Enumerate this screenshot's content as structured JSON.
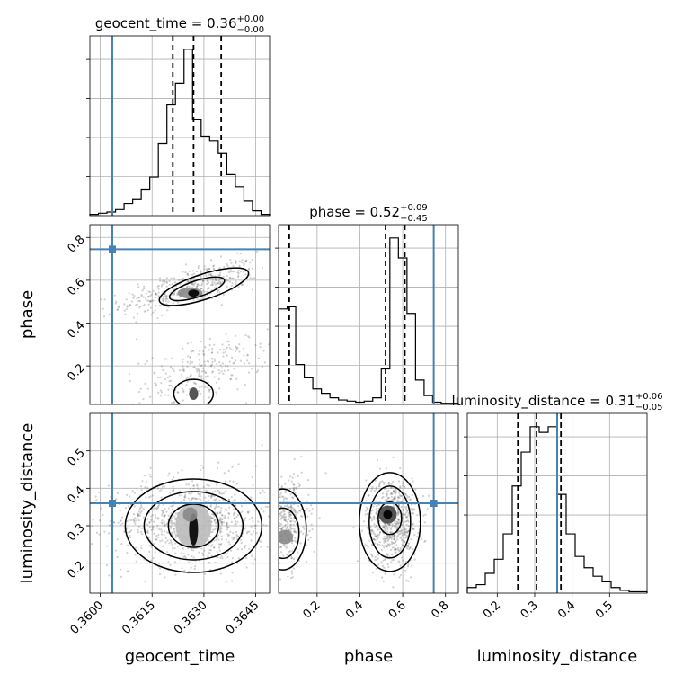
{
  "chart_data": {
    "type": "corner",
    "truth_color": "#4682b4",
    "grid": true,
    "parameters": [
      {
        "name": "geocent_time",
        "label": "geocent_time",
        "range": [
          0.3597,
          0.3649
        ],
        "ticks": [
          0.36,
          0.3615,
          0.363,
          0.3645
        ],
        "tick_labels": [
          "0.3600",
          "0.3615",
          "0.3630",
          "0.3645"
        ],
        "truth": 0.36035,
        "quantiles": [
          0.3621,
          0.3627,
          0.3635
        ],
        "title": {
          "main": "geocent_time = 0.36",
          "upper": "+0.00",
          "lower": "−0.00"
        },
        "hist": [
          0.5,
          1,
          1.5,
          2.5,
          5,
          7,
          11,
          16,
          30,
          46,
          55,
          69,
          40,
          33,
          31,
          26,
          17,
          12,
          6,
          2,
          0.5
        ]
      },
      {
        "name": "phase",
        "label": "phase",
        "range": [
          0.02,
          0.86
        ],
        "ticks": [
          0.2,
          0.4,
          0.6,
          0.8
        ],
        "tick_labels": [
          "0.2",
          "0.4",
          "0.6",
          "0.8"
        ],
        "truth": 0.745,
        "quantiles": [
          0.07,
          0.52,
          0.61
        ],
        "title": {
          "main": "phase = 0.52",
          "upper": "+0.09",
          "lower": "−0.45"
        },
        "hist": [
          43,
          44,
          18,
          12,
          7,
          5,
          3,
          2,
          1.5,
          1,
          1.5,
          3,
          16,
          75,
          66,
          41,
          11,
          4,
          1,
          0.5,
          0.5
        ]
      },
      {
        "name": "luminosity_distance",
        "label": "luminosity_distance",
        "range": [
          0.12,
          0.6
        ],
        "ticks": [
          0.2,
          0.3,
          0.4,
          0.5
        ],
        "tick_labels": [
          "0.2",
          "0.3",
          "0.4",
          "0.5"
        ],
        "truth": 0.36,
        "quantiles": [
          0.255,
          0.305,
          0.37
        ],
        "title": {
          "main": "luminosity_distance = 0.31",
          "upper": "+0.06",
          "lower": "−0.05"
        },
        "hist": [
          2,
          3,
          7,
          12,
          21,
          38,
          50,
          59,
          57,
          59,
          35,
          21,
          13,
          9,
          6,
          4,
          2,
          1,
          0.5,
          0.5
        ]
      }
    ]
  }
}
